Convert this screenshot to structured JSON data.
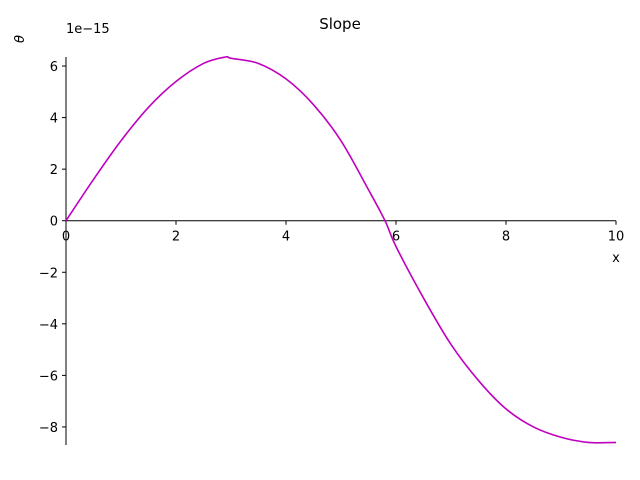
{
  "chart_data": {
    "type": "line",
    "title": "Slope",
    "xlabel": "x",
    "ylabel": "θ",
    "y_offset_label": "1e−15",
    "xlim": [
      0,
      10
    ],
    "ylim": [
      -8.7,
      6.35
    ],
    "x_ticks": [
      0,
      2,
      4,
      6,
      8,
      10
    ],
    "x_tick_labels": [
      "0",
      "2",
      "4",
      "6",
      "8",
      "10"
    ],
    "y_ticks": [
      -8,
      -6,
      -4,
      -2,
      0,
      2,
      4,
      6
    ],
    "y_tick_labels": [
      "−8",
      "−6",
      "−4",
      "−2",
      "0",
      "2",
      "4",
      "6"
    ],
    "grid": false,
    "line_color": "#bf00bf",
    "series": [
      {
        "x": [
          0,
          0.5,
          1,
          1.5,
          2,
          2.5,
          2.9,
          3,
          3.5,
          4,
          4.5,
          5,
          5.5,
          5.8,
          6,
          6.5,
          7,
          7.5,
          8,
          8.5,
          9,
          9.5,
          10
        ],
        "values": [
          0,
          1.6,
          3.1,
          4.4,
          5.4,
          6.1,
          6.35,
          6.3,
          6.1,
          5.5,
          4.5,
          3.1,
          1.2,
          0,
          -1.0,
          -3.0,
          -4.8,
          -6.2,
          -7.3,
          -8.0,
          -8.4,
          -8.6,
          -8.6
        ]
      }
    ]
  }
}
